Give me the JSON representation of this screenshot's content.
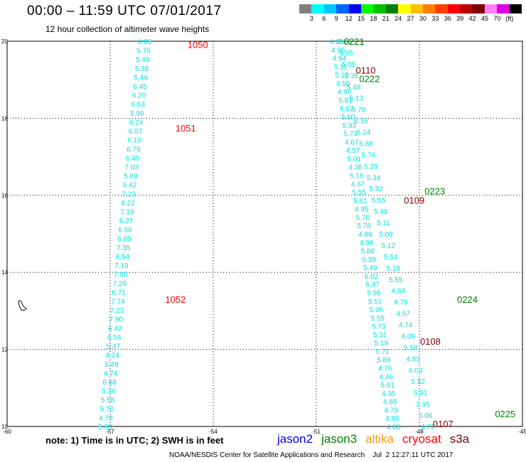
{
  "header": {
    "title": "00:00 – 11:59 UTC 07/01/2017",
    "subtitle": "12 hour collection of altimeter wave heights"
  },
  "legend": {
    "colors": [
      "#808080",
      "#00ffff",
      "#00c8ff",
      "#0064ff",
      "#0000ff",
      "#00ff00",
      "#00c000",
      "#008000",
      "#ffff00",
      "#ffc000",
      "#ff8000",
      "#ff4000",
      "#ff0000",
      "#c00000",
      "#800000",
      "#ff80ff",
      "#e000e0",
      "#000000"
    ],
    "labels": [
      "3",
      "6",
      "9",
      "12",
      "15",
      "18",
      "21",
      "24",
      "27",
      "30",
      "33",
      "36",
      "39",
      "42",
      "45",
      "70",
      "(ft)"
    ]
  },
  "chart_data": {
    "type": "scatter",
    "title": "12 hour collection of altimeter wave heights",
    "xlim": [
      -60,
      -45
    ],
    "ylim": [
      10,
      20
    ],
    "x_ticks": [
      "-60",
      "-57",
      "-54",
      "-51",
      "-48",
      "-45"
    ],
    "y_ticks": [
      "20",
      "18",
      "16",
      "14",
      "12",
      "10"
    ],
    "grid": true,
    "label_color": "#00e0e0",
    "tracks": [
      {
        "x_start": -56.0,
        "x_end": -57.15,
        "values": [
          "4.86",
          "5.70",
          "5.49",
          "5.38",
          "5.49",
          "6.45",
          "6.20",
          "6.63",
          "5.99",
          "6.24",
          "6.07",
          "6.10",
          "6.79",
          "6.40",
          "7.03",
          "5.69",
          "6.42",
          "7.23",
          "6.22",
          "7.19",
          "6.27",
          "6.68",
          "6.05",
          "7.35",
          "6.94",
          "7.19",
          "7.98",
          "7.29",
          "6.71",
          "7.74",
          "7.23",
          "7.90",
          "6.42",
          "6.56",
          "5.47",
          "4.24",
          "5.49",
          "4.74",
          "6.88",
          "5.36",
          "5.58",
          "5.70",
          "4.78",
          "5.68"
        ]
      },
      {
        "x_start": -50.4,
        "x_end": -48.75,
        "values": [
          "4.20",
          "4.95",
          "4.94",
          "5.11",
          "5.10",
          "4.50",
          "4.94",
          "5.81",
          "5.57",
          "5.80",
          "5.93",
          "5.73",
          "4.67",
          "4.57",
          "5.01",
          "4.38",
          "5.16",
          "4.67",
          "5.55",
          "5.61",
          "4.95",
          "5.70",
          "5.78",
          "4.89",
          "4.98",
          "5.80",
          "5.39",
          "5.49",
          "6.02",
          "5.47",
          "5.95",
          "5.51",
          "5.06",
          "5.55",
          "5.73",
          "5.31",
          "5.19",
          "5.71",
          "5.89",
          "4.76",
          "4.46",
          "5.91",
          "4.35",
          "4.88",
          "4.79",
          "4.86",
          "4.88"
        ]
      },
      {
        "x_start": -50.2,
        "x_end": -47.75,
        "values": [
          "4.40",
          "4.85",
          "5.05",
          "5.35",
          "5.48",
          "5.13",
          "5.70",
          "6.16",
          "5.24",
          "5.88",
          "5.76",
          "5.29",
          "5.34",
          "5.32",
          "5.55",
          "5.48",
          "5.11",
          "5.09",
          "5.12",
          "5.54",
          "5.18",
          "5.55",
          "4.84",
          "4.79",
          "4.57",
          "4.74",
          "4.09",
          "5.58",
          "4.83",
          "6.03",
          "5.52",
          "5.91",
          "3.95",
          "5.06",
          "4.72"
        ]
      }
    ],
    "pass_labels": [
      {
        "text": "1050",
        "x": -54.75,
        "y": 19.92,
        "satellite": "cryosat"
      },
      {
        "text": "1051",
        "x": -55.1,
        "y": 17.75,
        "satellite": "cryosat"
      },
      {
        "text": "1052",
        "x": -55.4,
        "y": 13.3,
        "satellite": "cryosat"
      },
      {
        "text": "0221",
        "x": -50.2,
        "y": 20.0,
        "satellite": "jason3"
      },
      {
        "text": "0110",
        "x": -49.85,
        "y": 19.25,
        "satellite": "s3a"
      },
      {
        "text": "0222",
        "x": -49.75,
        "y": 19.03,
        "satellite": "jason3"
      },
      {
        "text": "0223",
        "x": -47.85,
        "y": 16.12,
        "satellite": "jason3"
      },
      {
        "text": "0109",
        "x": -48.45,
        "y": 15.88,
        "satellite": "s3a"
      },
      {
        "text": "0224",
        "x": -46.9,
        "y": 13.3,
        "satellite": "jason3"
      },
      {
        "text": "0108",
        "x": -47.98,
        "y": 12.21,
        "satellite": "s3a"
      },
      {
        "text": "0225",
        "x": -45.8,
        "y": 10.33,
        "satellite": "jason3"
      },
      {
        "text": "0107",
        "x": -47.61,
        "y": 10.07,
        "satellite": "s3a"
      }
    ]
  },
  "note": "note: 1) Time is in UTC; 2) SWH is in feet",
  "satellites": [
    {
      "key": "jason2",
      "name": "jason2",
      "color": "#0000ff"
    },
    {
      "key": "jason3",
      "name": "jason3",
      "color": "#008000"
    },
    {
      "key": "altika",
      "name": "altika",
      "color": "#ff9900"
    },
    {
      "key": "cryosat",
      "name": "cryosat",
      "color": "#ff0000"
    },
    {
      "key": "s3a",
      "name": "s3a",
      "color": "#800000"
    }
  ],
  "credit": "NOAA/NESDIS Center for Satellite Applications and Research    Jul  2 12:27:11 UTC 2017"
}
